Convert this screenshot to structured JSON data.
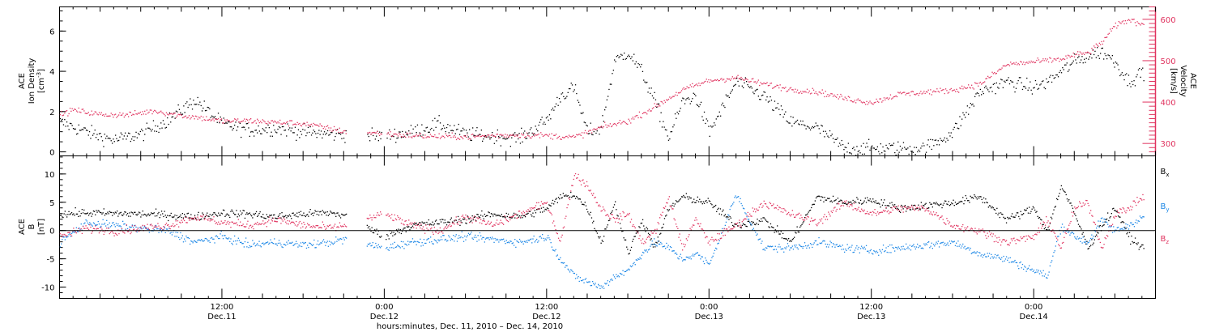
{
  "chart_data": [
    {
      "type": "scatter",
      "panel": "top",
      "ylabel_left": [
        "ACE",
        "Ion Density",
        "[cm",
        "-3",
        "]"
      ],
      "ylabel_right": [
        "ACE",
        "Velocity",
        "[km/s]"
      ],
      "left_axis": {
        "ylim": [
          -0.2,
          7.2
        ],
        "ticks": [
          0,
          2,
          4,
          6
        ],
        "tick_labels": [
          "0",
          "2",
          "4",
          "6"
        ]
      },
      "right_axis": {
        "ylim": [
          270,
          630
        ],
        "ticks": [
          300,
          400,
          500,
          600
        ],
        "tick_labels": [
          "300",
          "400",
          "500",
          "600"
        ],
        "color": "#e0335f"
      },
      "x_unit": "hours since Dec. 11, 2010 00:00",
      "xlim": [
        0,
        81
      ],
      "gaps": [
        [
          21.2,
          22.7
        ],
        [
          23.8,
          24.1
        ]
      ],
      "series": [
        {
          "name": "density",
          "color": "#000000",
          "axis": "left",
          "x": [
            0,
            2,
            4,
            6,
            8,
            10,
            12,
            14,
            16,
            18,
            20,
            21,
            24,
            26,
            28,
            30,
            32,
            34,
            36,
            37,
            38,
            39,
            40,
            41,
            42,
            43,
            44,
            45,
            46,
            47,
            48,
            50,
            52,
            54,
            56,
            58,
            60,
            62,
            64,
            66,
            68,
            70,
            72,
            73,
            74,
            75,
            76,
            77,
            78,
            79,
            80
          ],
          "y": [
            1.5,
            1.0,
            0.6,
            0.9,
            1.6,
            2.6,
            1.4,
            1.1,
            1.2,
            1.0,
            0.9,
            0.9,
            0.8,
            1.0,
            1.4,
            0.9,
            0.8,
            0.7,
            1.6,
            2.8,
            3.2,
            1.0,
            1.2,
            4.5,
            5.0,
            4.0,
            2.5,
            0.7,
            2.5,
            2.8,
            1.0,
            3.5,
            2.8,
            1.5,
            1.2,
            0.2,
            0.2,
            0.2,
            0.2,
            1.0,
            3.0,
            3.5,
            3.2,
            3.5,
            4.0,
            4.5,
            4.8,
            5.0,
            4.5,
            3.5,
            4.0
          ]
        },
        {
          "name": "velocity",
          "color": "#e0335f",
          "axis": "right",
          "x": [
            0,
            1,
            3,
            5,
            7,
            9,
            10,
            12,
            14,
            16,
            18,
            20,
            21,
            24,
            26,
            28,
            30,
            32,
            34,
            36,
            38,
            40,
            42,
            44,
            45,
            46,
            48,
            50,
            52,
            54,
            56,
            58,
            60,
            62,
            64,
            66,
            68,
            70,
            72,
            74,
            75,
            76,
            77,
            78,
            79,
            80
          ],
          "y": [
            370,
            382,
            371,
            370,
            380,
            368,
            365,
            355,
            356,
            352,
            349,
            337,
            330,
            325,
            320,
            318,
            317,
            320,
            322,
            320,
            316,
            340,
            355,
            390,
            410,
            430,
            453,
            460,
            445,
            432,
            426,
            410,
            400,
            420,
            425,
            430,
            445,
            492,
            498,
            505,
            515,
            520,
            545,
            585,
            600,
            590
          ]
        }
      ]
    },
    {
      "type": "scatter",
      "panel": "bottom",
      "ylabel_left": [
        "ACE",
        "B",
        "[nT]"
      ],
      "ylim": [
        -12,
        13.2
      ],
      "ticks": [
        -10,
        -5,
        0,
        5,
        10
      ],
      "tick_labels": [
        "-10",
        "-5",
        "0",
        "5",
        "10"
      ],
      "legend_placement": "right",
      "x_unit": "hours since Dec. 11, 2010 00:00",
      "xlim": [
        0,
        81
      ],
      "gaps": [
        [
          21.2,
          22.7
        ],
        [
          23.8,
          24.1
        ]
      ],
      "series": [
        {
          "name": "Bx",
          "label": "B",
          "sub": "x",
          "color": "#000000",
          "x": [
            0,
            2,
            4,
            6,
            8,
            10,
            12,
            14,
            16,
            18,
            20,
            21,
            24,
            26,
            28,
            30,
            32,
            34,
            36,
            37,
            38,
            39,
            40,
            41,
            42,
            43,
            44,
            45,
            46,
            47,
            48,
            50,
            52,
            54,
            56,
            58,
            60,
            62,
            64,
            66,
            68,
            70,
            72,
            73,
            74,
            75,
            76,
            77,
            78,
            79,
            80
          ],
          "y": [
            3.0,
            3.2,
            3.1,
            3.0,
            2.8,
            2.5,
            3.2,
            3.0,
            2.5,
            3.0,
            3.2,
            2.8,
            -1.0,
            1.0,
            1.5,
            2.0,
            3.0,
            2.5,
            4.0,
            6.0,
            6.5,
            4.0,
            -2.0,
            5.0,
            -4.0,
            2.0,
            -3.0,
            4.0,
            6.0,
            5.5,
            5.0,
            1.0,
            2.0,
            -2.0,
            6.0,
            5.0,
            5.5,
            4.0,
            4.5,
            5.0,
            6.0,
            2.0,
            4.0,
            0.0,
            8.0,
            3.0,
            -3.0,
            1.0,
            4.0,
            -1.0,
            -3.0
          ]
        },
        {
          "name": "By",
          "label": "B",
          "sub": "y",
          "color": "#1a86e6",
          "x": [
            0,
            2,
            4,
            6,
            8,
            10,
            12,
            14,
            16,
            18,
            20,
            21,
            24,
            26,
            28,
            30,
            32,
            34,
            36,
            37,
            38,
            39,
            40,
            41,
            42,
            43,
            44,
            45,
            46,
            47,
            48,
            50,
            52,
            54,
            56,
            58,
            60,
            62,
            64,
            66,
            68,
            70,
            72,
            73,
            74,
            75,
            76,
            77,
            78,
            79,
            80
          ],
          "y": [
            -2.0,
            1.5,
            1.0,
            0.5,
            0.0,
            -2.0,
            -1.0,
            -2.5,
            -2.0,
            -2.5,
            -2.0,
            -1.5,
            -3.0,
            -2.0,
            -1.5,
            -1.0,
            -1.5,
            -2.0,
            -1.0,
            -5.0,
            -8.0,
            -9.0,
            -10.0,
            -8.0,
            -7.0,
            -4.0,
            -2.0,
            -3.0,
            -5.0,
            -4.0,
            -6.0,
            6.5,
            -3.0,
            -3.0,
            -2.0,
            -3.0,
            -3.5,
            -3.0,
            -2.5,
            -2.0,
            -4.0,
            -5.0,
            -7.0,
            -8.0,
            1.0,
            -1.0,
            -2.0,
            2.0,
            0.0,
            1.0,
            2.5
          ]
        },
        {
          "name": "Bz",
          "label": "B",
          "sub": "z",
          "color": "#e0335f",
          "x": [
            0,
            2,
            4,
            6,
            8,
            10,
            12,
            14,
            16,
            18,
            20,
            21,
            24,
            26,
            28,
            30,
            32,
            34,
            36,
            37,
            38,
            39,
            40,
            41,
            42,
            43,
            44,
            45,
            46,
            47,
            48,
            50,
            52,
            54,
            56,
            58,
            60,
            62,
            64,
            66,
            68,
            70,
            72,
            73,
            74,
            75,
            76,
            77,
            78,
            79,
            80
          ],
          "y": [
            -1.0,
            0.5,
            0.0,
            0.5,
            1.0,
            2.5,
            1.5,
            1.0,
            2.0,
            1.0,
            0.5,
            1.0,
            3.0,
            1.0,
            0.0,
            2.5,
            1.0,
            3.0,
            5.0,
            -2.0,
            10.0,
            8.0,
            4.0,
            2.0,
            3.0,
            -2.0,
            0.0,
            6.0,
            -3.0,
            2.0,
            -2.0,
            1.0,
            5.0,
            3.0,
            1.5,
            5.0,
            3.0,
            4.0,
            4.0,
            1.0,
            0.0,
            -2.0,
            -1.0,
            2.0,
            -3.0,
            4.0,
            5.0,
            -3.0,
            3.0,
            4.0,
            6.0
          ]
        }
      ]
    }
  ],
  "x_axis": {
    "ticks": [
      {
        "hour": 12,
        "time": "12:00",
        "day": "Dec.11"
      },
      {
        "hour": 24,
        "time": "0:00",
        "day": "Dec.12"
      },
      {
        "hour": 36,
        "time": "12:00",
        "day": "Dec.12"
      },
      {
        "hour": 48,
        "time": "0:00",
        "day": "Dec.13"
      },
      {
        "hour": 60,
        "time": "12:00",
        "day": "Dec.13"
      },
      {
        "hour": 72,
        "time": "0:00",
        "day": "Dec.14"
      }
    ],
    "xlabel": "hours:minutes, Dec. 11, 2010 – Dec. 14, 2010"
  }
}
